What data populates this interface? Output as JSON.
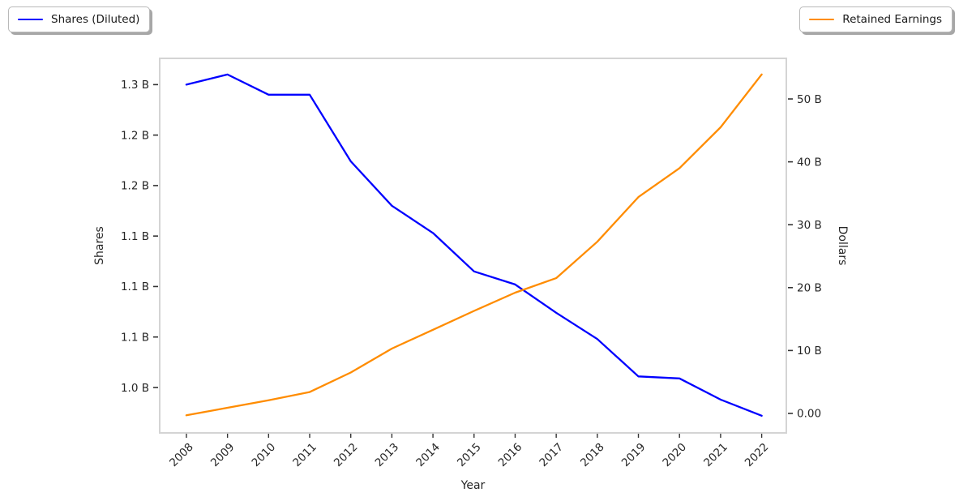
{
  "chart_data": {
    "type": "line",
    "title": "",
    "xlabel": "Year",
    "x": [
      2008,
      2009,
      2010,
      2011,
      2012,
      2013,
      2014,
      2015,
      2016,
      2017,
      2018,
      2019,
      2020,
      2021,
      2022
    ],
    "x_tick_labels": [
      "2008",
      "2009",
      "2010",
      "2011",
      "2012",
      "2013",
      "2014",
      "2015",
      "2016",
      "2017",
      "2018",
      "2019",
      "2020",
      "2021",
      "2022"
    ],
    "x_range": [
      2007.35,
      2022.6
    ],
    "left_axis": {
      "label": "Shares",
      "unit": "billions of shares",
      "tick_values": [
        1.3,
        1.25,
        1.2,
        1.15,
        1.1,
        1.05,
        1.0
      ],
      "tick_labels": [
        "1.3 B",
        "1.2 B",
        "1.2 B",
        "1.1 B",
        "1.1 B",
        "1.1 B",
        "1.0 B"
      ],
      "range": [
        0.955,
        1.326
      ]
    },
    "right_axis": {
      "label": "Dollars",
      "unit": "billions of dollars",
      "tick_values": [
        50,
        40,
        30,
        20,
        10,
        0
      ],
      "tick_labels": [
        "50 B",
        "40 B",
        "30 B",
        "20 B",
        "10 B",
        "0.00"
      ],
      "range": [
        -3.1,
        56.45
      ]
    },
    "series": [
      {
        "name": "Shares (Diluted)",
        "axis": "left",
        "color": "#0000ff",
        "values": [
          1.3,
          1.31,
          1.29,
          1.29,
          1.224,
          1.18,
          1.153,
          1.115,
          1.102,
          1.074,
          1.048,
          1.011,
          1.009,
          0.988,
          0.972
        ]
      },
      {
        "name": "Retained Earnings",
        "axis": "right",
        "color": "#ff8c00",
        "values": [
          -0.3,
          0.9,
          2.1,
          3.4,
          6.5,
          10.3,
          13.3,
          16.3,
          19.2,
          21.5,
          27.3,
          34.4,
          39.0,
          45.5,
          53.9
        ]
      }
    ],
    "legend_position": "top-left and top-right, outside plot",
    "grid": false
  },
  "legend_left": {
    "label": "Shares (Diluted)"
  },
  "legend_right": {
    "label": "Retained Earnings"
  },
  "colors": {
    "shares_line": "#0000ff",
    "retained_line": "#ff8c00",
    "spine": "#d4d4d4",
    "tick_mark": "#333333",
    "tick_text": "#262626"
  }
}
